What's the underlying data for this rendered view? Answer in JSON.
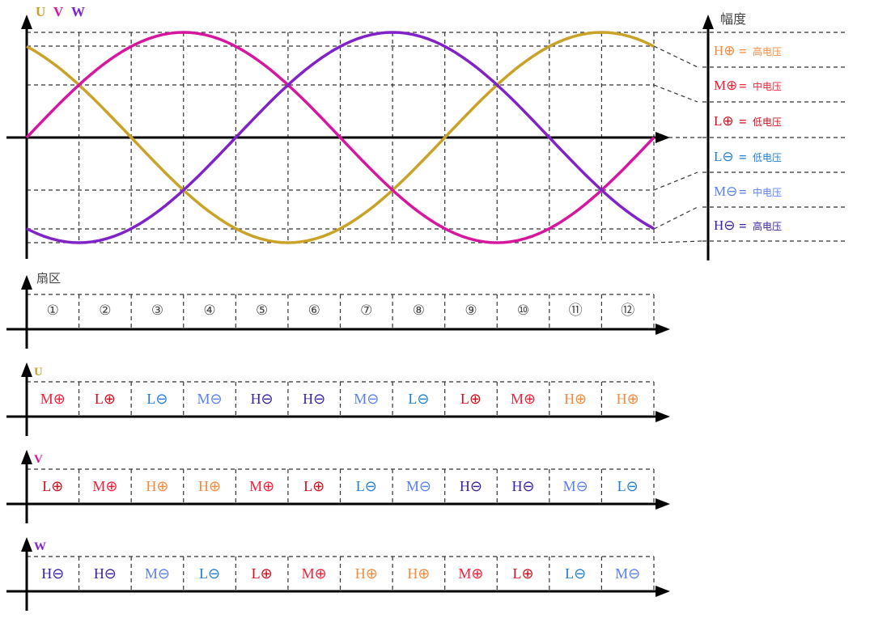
{
  "phases": [
    {
      "name": "U",
      "color": "#c9a227"
    },
    {
      "name": "V",
      "color": "#d6169f"
    },
    {
      "name": "W",
      "color": "#8022c8"
    }
  ],
  "amplitude_label": "幅度",
  "sector_label": "扇区",
  "levels": {
    "H+": {
      "sym": "H⊕",
      "desc": "高电压",
      "color": "#f58a3c"
    },
    "M+": {
      "sym": "M⊕",
      "desc": "中电压",
      "color": "#f0203a"
    },
    "L+": {
      "sym": "L⊕",
      "desc": "低电压",
      "color": "#d0101e"
    },
    "L-": {
      "sym": "L⊖",
      "desc": "低电压",
      "color": "#1f7fd0"
    },
    "M-": {
      "sym": "M⊖",
      "desc": "中电压",
      "color": "#5a7ff0"
    },
    "H-": {
      "sym": "H⊖",
      "desc": "高电压",
      "color": "#3a1fa0"
    }
  },
  "legend_order": [
    "H+",
    "M+",
    "L+",
    "L-",
    "M-",
    "H-"
  ],
  "legend_eq": "=",
  "sectors": [
    "①",
    "②",
    "③",
    "④",
    "⑤",
    "⑥",
    "⑦",
    "⑧",
    "⑨",
    "⑩",
    "⑪",
    "⑫"
  ],
  "strips": [
    {
      "phase": "U",
      "cells": [
        "M+",
        "L+",
        "L-",
        "M-",
        "H-",
        "H-",
        "M-",
        "L-",
        "L+",
        "M+",
        "H+",
        "H+"
      ]
    },
    {
      "phase": "V",
      "cells": [
        "L+",
        "M+",
        "H+",
        "H+",
        "M+",
        "L+",
        "L-",
        "M-",
        "H-",
        "H-",
        "M-",
        "L-"
      ]
    },
    {
      "phase": "W",
      "cells": [
        "H-",
        "H-",
        "M-",
        "L-",
        "L+",
        "M+",
        "H+",
        "H+",
        "M+",
        "L+",
        "L-",
        "M-"
      ]
    }
  ],
  "waveform": {
    "type": "sine",
    "phase_offsets_deg": {
      "U": 120,
      "V": 0,
      "W": -120
    },
    "x_range_deg": [
      0,
      360
    ],
    "sector_width_deg": 30
  }
}
